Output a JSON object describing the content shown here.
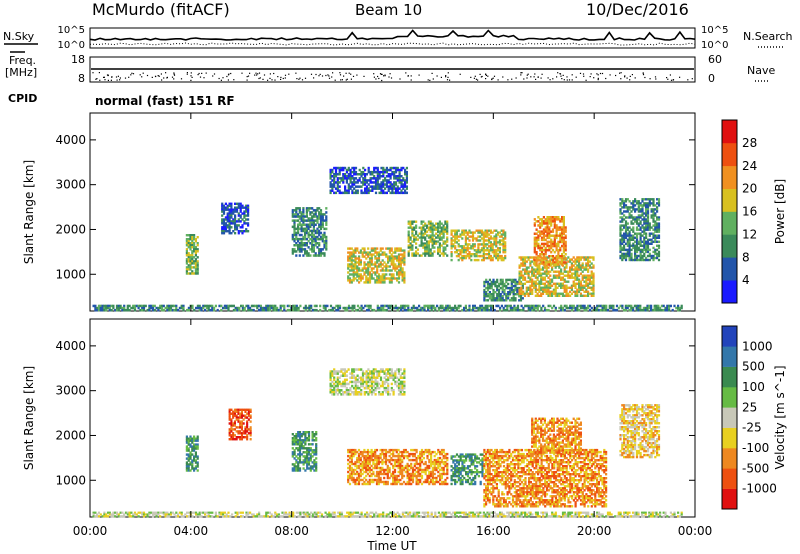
{
  "header": {
    "station": "McMurdo (fitACF)",
    "beam": "Beam 10",
    "date": "10/Dec/2016"
  },
  "strip_labels": {
    "nsky": "N.Sky",
    "nsearch": "N.Search",
    "freq_line1": "Freq.",
    "freq_line2": "[MHz]",
    "nave": "Nave",
    "cpid": "CPID",
    "mode": "normal (fast) 151 RF",
    "noise_ticks": [
      "10^5",
      "10^0"
    ],
    "freq_ticks": [
      "18",
      "8"
    ],
    "nave_ticks": [
      "60",
      "0"
    ]
  },
  "chart_data": [
    {
      "type": "heatmap",
      "title": "Power",
      "xlabel": "",
      "ylabel": "Slant Range [km]",
      "xlim_hours": [
        0,
        24
      ],
      "ylim_km": [
        180,
        4600
      ],
      "colorbar_label": "Power [dB]",
      "colorbar_ticks": [
        "4",
        "8",
        "12",
        "16",
        "20",
        "24",
        "28"
      ],
      "colors": [
        "#1a1aff",
        "#2255aa",
        "#3a8a5a",
        "#60b060",
        "#d8c020",
        "#f09020",
        "#ee5010",
        "#e01010"
      ],
      "x_tick_labels": [
        "00:00",
        "04:00",
        "08:00",
        "12:00",
        "16:00",
        "20:00",
        "00:00"
      ],
      "y_tick_labels": [
        "1000",
        "2000",
        "3000",
        "4000"
      ],
      "y_ticks": [
        1000,
        2000,
        3000,
        4000
      ],
      "echo_regions": [
        {
          "t": [
            0.1,
            23.5
          ],
          "r": [
            180,
            320
          ],
          "level": 2
        },
        {
          "t": [
            3.8,
            4.3
          ],
          "r": [
            1000,
            1900
          ],
          "level": 3
        },
        {
          "t": [
            5.2,
            6.3
          ],
          "r": [
            1900,
            2600
          ],
          "level": 1
        },
        {
          "t": [
            8.0,
            9.4
          ],
          "r": [
            1400,
            2500
          ],
          "level": 2
        },
        {
          "t": [
            9.5,
            12.6
          ],
          "r": [
            2800,
            3400
          ],
          "level": 1
        },
        {
          "t": [
            10.2,
            12.5
          ],
          "r": [
            800,
            1600
          ],
          "level": 4
        },
        {
          "t": [
            12.6,
            14.2
          ],
          "r": [
            1400,
            2200
          ],
          "level": 3
        },
        {
          "t": [
            14.3,
            16.5
          ],
          "r": [
            1300,
            2000
          ],
          "level": 4
        },
        {
          "t": [
            15.6,
            17.2
          ],
          "r": [
            400,
            900
          ],
          "level": 2
        },
        {
          "t": [
            17.0,
            20.0
          ],
          "r": [
            500,
            1400
          ],
          "level": 4
        },
        {
          "t": [
            17.6,
            18.9
          ],
          "r": [
            1200,
            2300
          ],
          "level": 5
        },
        {
          "t": [
            21.0,
            22.6
          ],
          "r": [
            1300,
            2700
          ],
          "level": 2
        }
      ]
    },
    {
      "type": "heatmap",
      "title": "Velocity",
      "xlabel": "Time UT",
      "ylabel": "Slant Range [km]",
      "xlim_hours": [
        0,
        24
      ],
      "ylim_km": [
        180,
        4600
      ],
      "colorbar_label": "Velocity [m s^-1]",
      "colorbar_ticks": [
        "1000",
        "500",
        "100",
        "25",
        "-25",
        "-100",
        "-500",
        "-1000"
      ],
      "colors": [
        "#2244bb",
        "#3377aa",
        "#3a8a50",
        "#66bb44",
        "#c8c8b8",
        "#e8d020",
        "#ee8820",
        "#ee5010",
        "#e01010"
      ],
      "x_tick_labels": [
        "00:00",
        "04:00",
        "08:00",
        "12:00",
        "16:00",
        "20:00",
        "00:00"
      ],
      "y_tick_labels": [
        "1000",
        "2000",
        "3000",
        "4000"
      ],
      "y_ticks": [
        1000,
        2000,
        3000,
        4000
      ],
      "echo_regions": [
        {
          "t": [
            0.1,
            23.5
          ],
          "r": [
            180,
            300
          ],
          "level": 4
        },
        {
          "t": [
            3.8,
            4.3
          ],
          "r": [
            1200,
            2000
          ],
          "level": 2
        },
        {
          "t": [
            5.5,
            6.4
          ],
          "r": [
            1900,
            2600
          ],
          "level": 7
        },
        {
          "t": [
            8.0,
            9.0
          ],
          "r": [
            1200,
            2100
          ],
          "level": 2
        },
        {
          "t": [
            9.5,
            12.5
          ],
          "r": [
            2900,
            3500
          ],
          "level": 4
        },
        {
          "t": [
            10.2,
            14.2
          ],
          "r": [
            900,
            1700
          ],
          "level": 6
        },
        {
          "t": [
            14.3,
            15.6
          ],
          "r": [
            900,
            1600
          ],
          "level": 2
        },
        {
          "t": [
            15.6,
            20.5
          ],
          "r": [
            400,
            1700
          ],
          "level": 6
        },
        {
          "t": [
            17.5,
            19.5
          ],
          "r": [
            1600,
            2400
          ],
          "level": 6
        },
        {
          "t": [
            21.0,
            22.6
          ],
          "r": [
            1500,
            2700
          ],
          "level": 5
        }
      ]
    }
  ]
}
